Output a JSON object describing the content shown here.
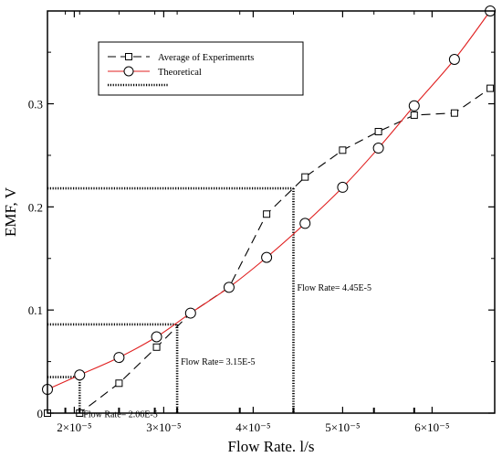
{
  "chart_data": {
    "type": "line",
    "xlabel": "Flow Rate. l/s",
    "ylabel": "EMF, V",
    "xlim": [
      1.7e-05,
      6.7e-05
    ],
    "ylim": [
      0,
      0.39
    ],
    "x_ticks": [
      {
        "value": 2e-05,
        "label": "2×10⁻⁵"
      },
      {
        "value": 3e-05,
        "label": "3×10⁻⁵"
      },
      {
        "value": 4e-05,
        "label": "4×10⁻⁵"
      },
      {
        "value": 5e-05,
        "label": "5×10⁻⁵"
      },
      {
        "value": 6e-05,
        "label": "6×10⁻⁵"
      }
    ],
    "y_ticks": [
      {
        "value": 0,
        "label": "0"
      },
      {
        "value": 0.1,
        "label": "0.1"
      },
      {
        "value": 0.2,
        "label": "0.2"
      },
      {
        "value": 0.3,
        "label": "0.3"
      }
    ],
    "minor_x_ticks": [
      1.9e-05,
      2.06e-05,
      2.5e-05,
      2.9e-05,
      3.15e-05,
      3.85e-05,
      4.45e-05,
      5.35e-05,
      5.8e-05
    ],
    "series": [
      {
        "name": "Average of Experimenrts",
        "style": "dashed",
        "marker": "square",
        "color": "#000000",
        "x": [
          1.7e-05,
          2.06e-05,
          2.5e-05,
          2.92e-05,
          3.3e-05,
          3.73e-05,
          4.15e-05,
          4.58e-05,
          5e-05,
          5.4e-05,
          5.8e-05,
          6.25e-05,
          6.65e-05
        ],
        "y": [
          0.0,
          0.0,
          0.029,
          0.064,
          0.097,
          0.122,
          0.193,
          0.229,
          0.255,
          0.273,
          0.289,
          0.291,
          0.315
        ]
      },
      {
        "name": "Theoretical",
        "style": "solid",
        "marker": "circle",
        "color": "#e02020",
        "x": [
          1.7e-05,
          2.06e-05,
          2.5e-05,
          2.92e-05,
          3.3e-05,
          3.73e-05,
          4.15e-05,
          4.58e-05,
          5e-05,
          5.4e-05,
          5.8e-05,
          6.25e-05,
          6.65e-05
        ],
        "y": [
          0.023,
          0.037,
          0.054,
          0.074,
          0.097,
          0.122,
          0.151,
          0.184,
          0.219,
          0.257,
          0.298,
          0.343,
          0.39
        ]
      }
    ],
    "reference_lines": [
      {
        "x": 2.06e-05,
        "y": 0.035,
        "label": "Flow Rate= 2.06E-5"
      },
      {
        "x": 3.15e-05,
        "y": 0.086,
        "label": "Flow Rate= 3.15E-5"
      },
      {
        "x": 4.45e-05,
        "y": 0.218,
        "label": "Flow Rate= 4.45E-5"
      }
    ],
    "legend": {
      "position": "top-left",
      "entries": [
        "Average of Experimenrts",
        "Theoretical",
        ""
      ]
    },
    "grid": false
  }
}
